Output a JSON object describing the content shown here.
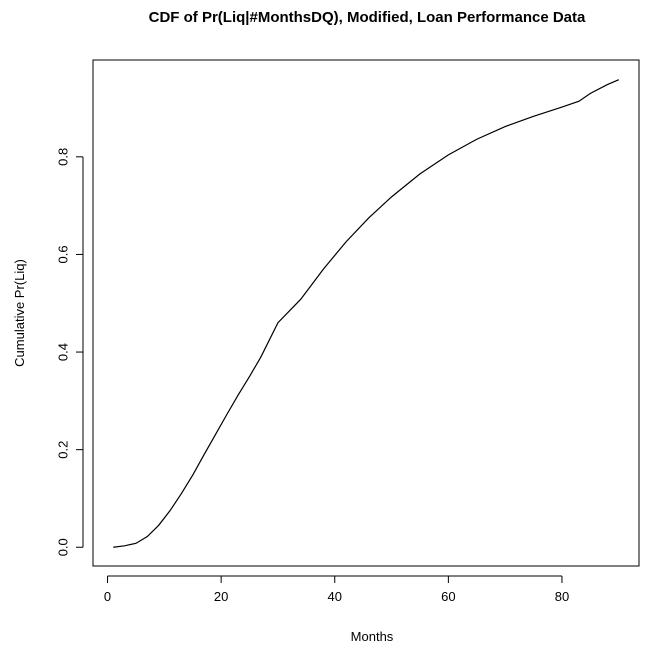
{
  "chart_data": {
    "type": "line",
    "title": "CDF of Pr(Liq|#MonthsDQ), Modified, Loan Performance Data",
    "xlabel": "Months",
    "ylabel": "Cumulative Pr(Liq)",
    "xlim": [
      1,
      90
    ],
    "ylim": [
      0,
      0.96
    ],
    "xticks": [
      0,
      20,
      40,
      60,
      80
    ],
    "yticks": [
      0.0,
      0.2,
      0.4,
      0.6,
      0.8
    ],
    "xtick_labels": [
      "0",
      "20",
      "40",
      "60",
      "80"
    ],
    "ytick_labels": [
      "0.0",
      "0.2",
      "0.4",
      "0.6",
      "0.8"
    ],
    "grid": false,
    "legend": "none",
    "line_color": "#000000",
    "series": [
      {
        "x": [
          1,
          3,
          5,
          7,
          9,
          11,
          13,
          15,
          17,
          19,
          21,
          23,
          25,
          27,
          30,
          34,
          38,
          42,
          46,
          50,
          55,
          60,
          65,
          70,
          75,
          80,
          83,
          85,
          88,
          90
        ],
        "y": [
          0.0,
          0.003,
          0.008,
          0.022,
          0.045,
          0.075,
          0.11,
          0.148,
          0.19,
          0.231,
          0.272,
          0.312,
          0.35,
          0.39,
          0.46,
          0.508,
          0.57,
          0.626,
          0.675,
          0.718,
          0.765,
          0.804,
          0.836,
          0.862,
          0.883,
          0.902,
          0.914,
          0.93,
          0.948,
          0.958
        ]
      }
    ]
  }
}
